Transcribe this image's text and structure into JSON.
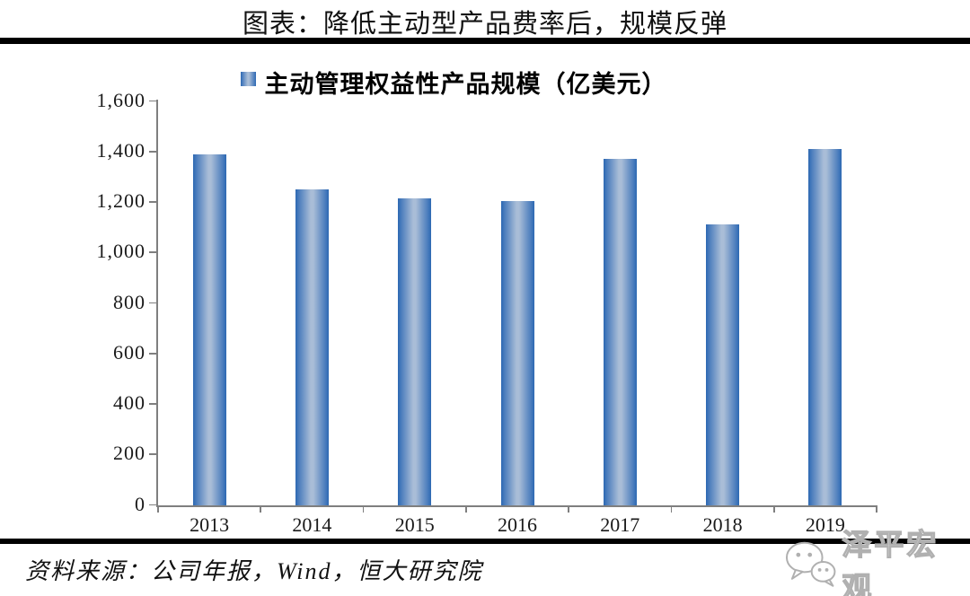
{
  "page": {
    "title": "图表：降低主动型产品费率后，规模反弹",
    "source_note": "资料来源：公司年报，Wind，恒大研究院",
    "watermark_text": "泽平宏观"
  },
  "icons": {
    "watermark_logo": "wechat-bubbles-icon",
    "legend_marker": "blue-gradient-square"
  },
  "colors": {
    "bar_edge": "#2c68b2",
    "bar_mid": "#4a7cbd",
    "bar_center": "#a9bdd7",
    "axis": "#7f7f7f",
    "rule": "#000000",
    "text": "#1a1a1a",
    "watermark_stroke": "#b0b0b0"
  },
  "chart_data": {
    "type": "bar",
    "title": "图表：降低主动型产品费率后，规模反弹",
    "legend_entries": [
      "主动管理权益性产品规模（亿美元）"
    ],
    "legend_position": "top-center",
    "categories": [
      "2013",
      "2014",
      "2015",
      "2016",
      "2017",
      "2018",
      "2019"
    ],
    "series": [
      {
        "name": "主动管理权益性产品规模（亿美元）",
        "values": [
          1390,
          1250,
          1215,
          1205,
          1370,
          1110,
          1410
        ]
      }
    ],
    "xlabel": "",
    "ylabel": "",
    "ylim": [
      0,
      1600
    ],
    "y_ticks": [
      0,
      200,
      400,
      600,
      800,
      1000,
      1200,
      1400,
      1600
    ],
    "grid": false
  }
}
